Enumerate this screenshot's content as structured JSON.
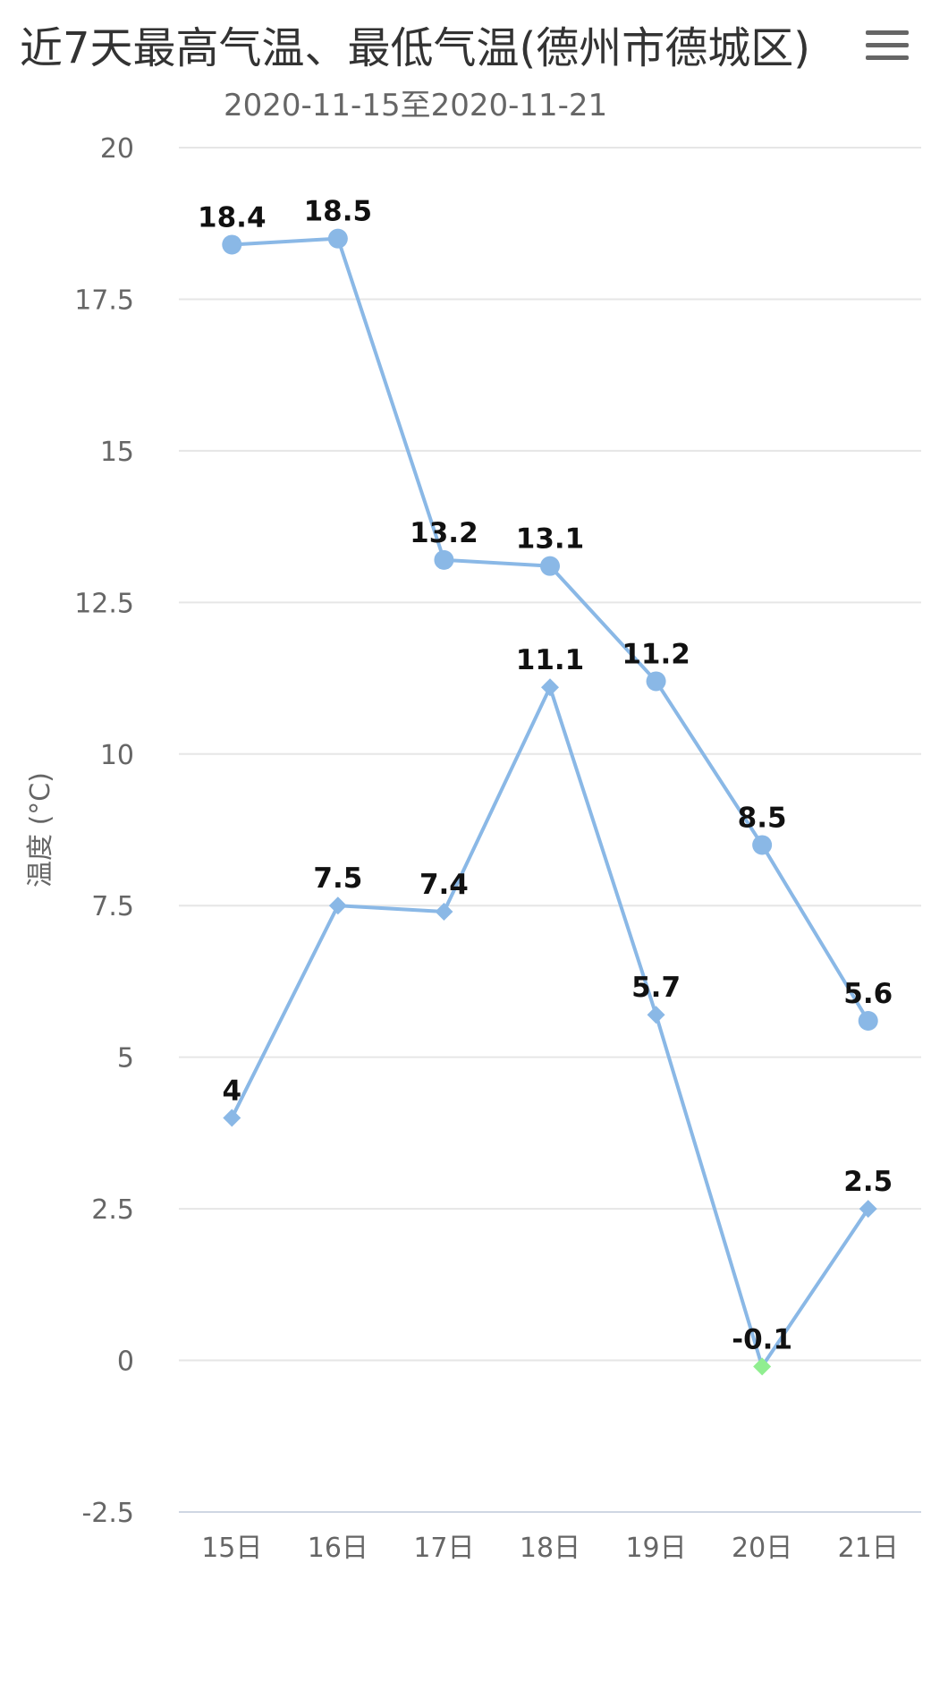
{
  "header": {
    "title": "近7天最高气温、最低气温(德州市德城区)",
    "subtitle": "2020-11-15至2020-11-21",
    "menu_icon": "menu-icon"
  },
  "chart_data": {
    "type": "line",
    "title": "近7天最高气温、最低气温(德州市德城区)",
    "subtitle": "2020-11-15至2020-11-21",
    "xlabel": "",
    "ylabel": "温度 (°C)",
    "categories": [
      "15日",
      "16日",
      "17日",
      "18日",
      "19日",
      "20日",
      "21日"
    ],
    "ylim": [
      -2.5,
      20
    ],
    "yticks": [
      -2.5,
      0,
      2.5,
      5,
      7.5,
      10,
      12.5,
      15,
      17.5,
      20
    ],
    "ytick_labels": [
      "-2.5",
      "0",
      "2.5",
      "5",
      "7.5",
      "10",
      "12.5",
      "15",
      "17.5",
      "20"
    ],
    "grid": true,
    "legend": "none",
    "series": [
      {
        "values": [
          18.4,
          18.5,
          13.2,
          13.1,
          11.2,
          8.5,
          5.6
        ],
        "labels": [
          "18.4",
          "18.5",
          "13.2",
          "13.1",
          "11.2",
          "8.5",
          "5.6"
        ],
        "marker": "circle",
        "color": "#8ab8e6"
      },
      {
        "values": [
          4,
          7.5,
          7.4,
          11.1,
          5.7,
          -0.1,
          2.5
        ],
        "labels": [
          "4",
          "7.5",
          "7.4",
          "11.1",
          "5.7",
          "-0.1",
          "2.5"
        ],
        "marker": "diamond",
        "color": "#8ab8e6",
        "negative_color": "#90ee90"
      }
    ]
  }
}
